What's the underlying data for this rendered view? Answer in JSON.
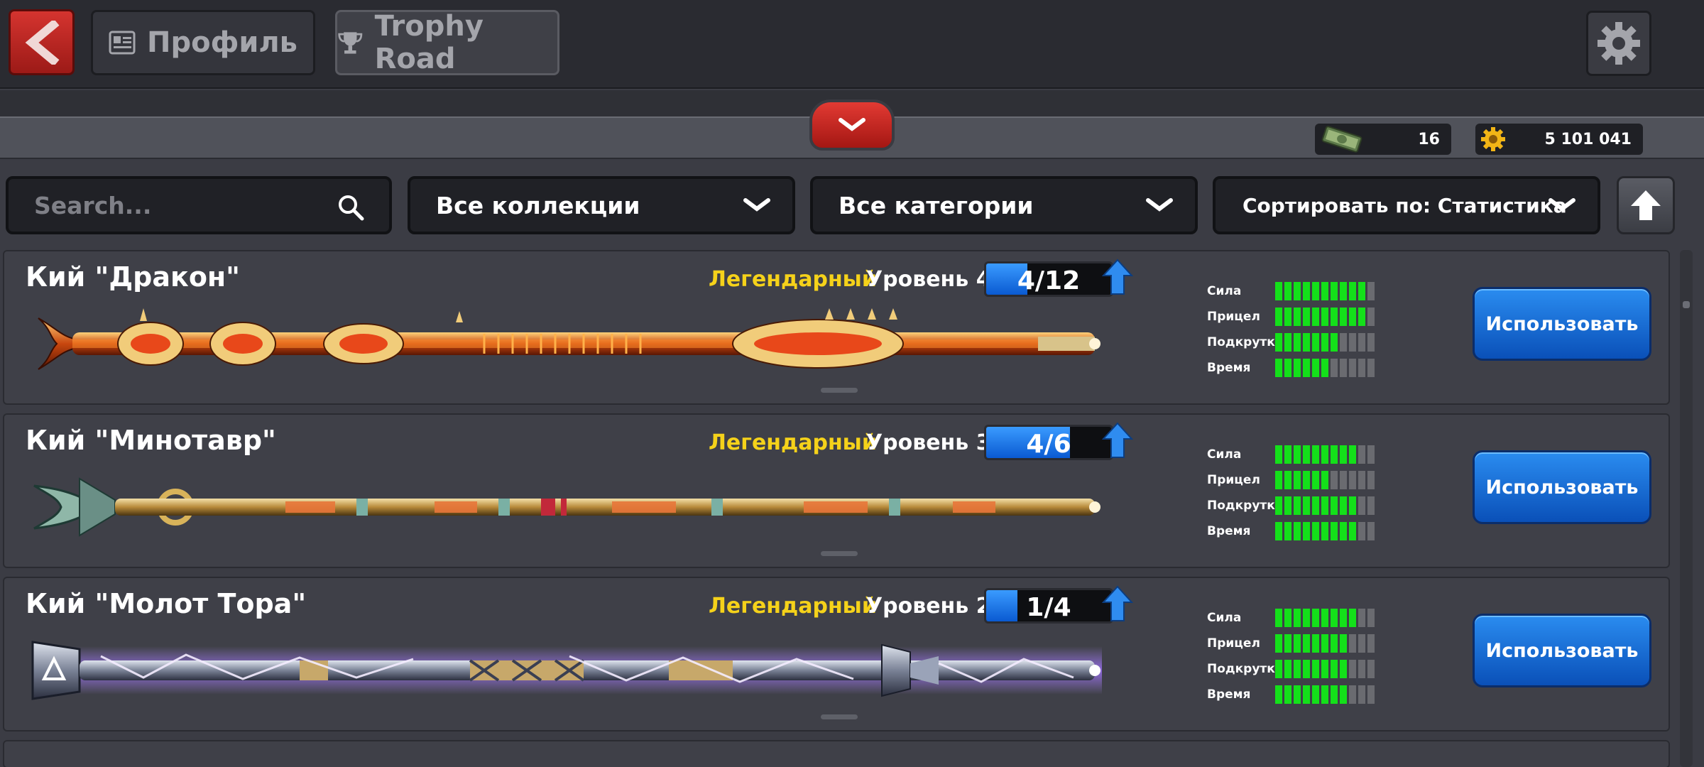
{
  "header": {
    "tabs": [
      {
        "label": "Профиль",
        "icon": "profile-card-icon",
        "active": false
      },
      {
        "label": "Trophy Road",
        "icon": "trophy-icon",
        "active": true
      }
    ]
  },
  "currencies": {
    "cash": {
      "value": "16",
      "icon": "cash-bundle-icon"
    },
    "coins": {
      "value": "5 101 041",
      "icon": "coin-gear-icon"
    }
  },
  "filters": {
    "search_placeholder": "Search...",
    "collections": "Все коллекции",
    "categories": "Все категории",
    "sort": "Сортировать по: Статистика"
  },
  "stat_labels": [
    "Сила",
    "Прицел",
    "Подкрутка",
    "Время"
  ],
  "cues": [
    {
      "name": "Кий \"Дракон\"",
      "rarity": "Легендарный",
      "level": "Уровень 4",
      "progress": "4/12",
      "progress_fraction": 0.33,
      "stats": [
        10,
        10,
        7,
        6
      ],
      "button": "Использовать"
    },
    {
      "name": "Кий \"Минотавр\"",
      "rarity": "Легендарный",
      "level": "Уровень 3",
      "progress": "4/6",
      "progress_fraction": 0.67,
      "stats": [
        9,
        6,
        9,
        9
      ],
      "button": "Использовать"
    },
    {
      "name": "Кий \"Молот Тора\"",
      "rarity": "Легендарный",
      "level": "Уровень 2",
      "progress": "1/4",
      "progress_fraction": 0.25,
      "stats": [
        9,
        8,
        8,
        8
      ],
      "button": "Использовать"
    }
  ],
  "stat_max": 11,
  "colors": {
    "rarity": "#f5d21a",
    "stat_on": "#14e01a",
    "stat_off": "#6a6b70",
    "button": "#1a6fe0",
    "back": "#c6302b"
  }
}
